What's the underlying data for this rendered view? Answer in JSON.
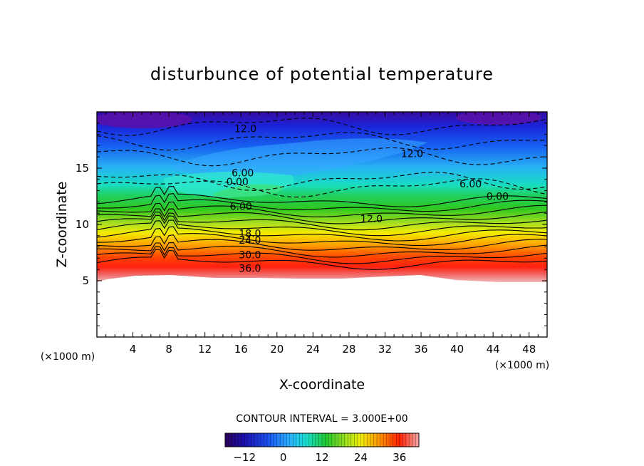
{
  "chart_data": {
    "type": "heatmap",
    "title": "disturbunce of potential temperature",
    "xlabel": "X-coordinate",
    "ylabel": "Z-coordinate",
    "x_unit": "(×1000 m)",
    "z_unit": "(×1000 m)",
    "xlim": [
      0,
      50
    ],
    "ylim": [
      0,
      20
    ],
    "x_ticks": [
      4,
      8,
      12,
      16,
      20,
      24,
      28,
      32,
      36,
      40,
      44,
      48
    ],
    "y_ticks": [
      5,
      10,
      15
    ],
    "contour_interval_text": "CONTOUR INTERVAL = 3.000E+00",
    "contour_interval": 3.0,
    "colorbar": {
      "min": -18,
      "max": 42,
      "ticks": [
        -12,
        0,
        12,
        24,
        36
      ],
      "colors": [
        "#2a005a",
        "#1030d0",
        "#2a8cff",
        "#18e0e0",
        "#20c830",
        "#9ae020",
        "#f0ee00",
        "#ff9800",
        "#ff2000",
        "#f0a0a0"
      ]
    },
    "contour_labels": [
      {
        "text": "12.0",
        "x": 16.5,
        "z": 18.5
      },
      {
        "text": "12.0",
        "x": 35,
        "z": 16.3
      },
      {
        "text": "6.00",
        "x": 16.2,
        "z": 14.6
      },
      {
        "text": "0.00",
        "x": 15.6,
        "z": 13.8
      },
      {
        "text": "6.00",
        "x": 41.5,
        "z": 13.6
      },
      {
        "text": "0.00",
        "x": 44.5,
        "z": 12.5
      },
      {
        "text": "6.00",
        "x": 16,
        "z": 11.6
      },
      {
        "text": "12.0",
        "x": 30.5,
        "z": 10.5
      },
      {
        "text": "18.0",
        "x": 17,
        "z": 9.2
      },
      {
        "text": "24.0",
        "x": 17,
        "z": 8.6
      },
      {
        "text": "30.0",
        "x": 17,
        "z": 7.3
      },
      {
        "text": "36.0",
        "x": 17,
        "z": 6.1
      }
    ]
  }
}
